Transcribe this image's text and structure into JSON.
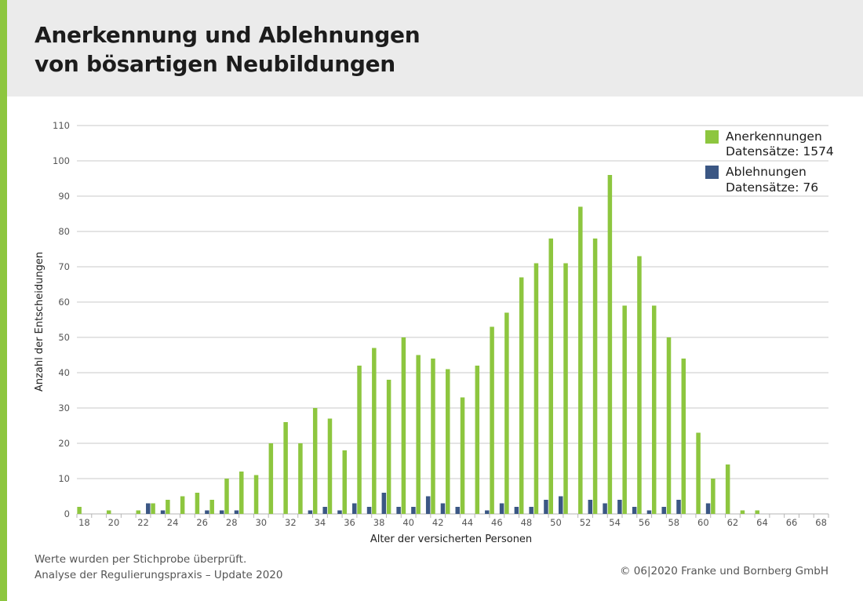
{
  "header": {
    "title_line1": "Anerkennung und Ablehnungen",
    "title_line2": "von bösartigen Neubildungen"
  },
  "footer": {
    "note_line1": "Werte wurden per Stichprobe überprüft.",
    "note_line2": "Analyse der Regulierungspraxis – Update 2020",
    "copyright": "© 06|2020 Franke und Bornberg GmbH"
  },
  "colors": {
    "accent": "#8dc63f",
    "anerkennungen": "#8dc63f",
    "ablehnungen": "#3b5784",
    "header_bg": "#ebebeb",
    "grid": "#c8c8c8"
  },
  "chart_data": {
    "type": "bar",
    "xlabel": "Alter der versicherten Personen",
    "ylabel": "Anzahl der Entscheidungen",
    "ylim": [
      0,
      110
    ],
    "yticks": [
      0,
      10,
      20,
      30,
      40,
      50,
      60,
      70,
      80,
      90,
      100,
      110
    ],
    "xticks": [
      18,
      20,
      22,
      24,
      26,
      28,
      30,
      32,
      34,
      36,
      38,
      40,
      42,
      44,
      46,
      48,
      50,
      52,
      54,
      56,
      58,
      60,
      62,
      64,
      66,
      68
    ],
    "grid": true,
    "legend_position": "top-right",
    "x": [
      18,
      19,
      20,
      21,
      22,
      23,
      24,
      25,
      26,
      27,
      28,
      29,
      30,
      31,
      32,
      33,
      34,
      35,
      36,
      37,
      38,
      39,
      40,
      41,
      42,
      43,
      44,
      45,
      46,
      47,
      48,
      49,
      50,
      51,
      52,
      53,
      54,
      55,
      56,
      57,
      58,
      59,
      60,
      61,
      62,
      63,
      64,
      65,
      66,
      67,
      68
    ],
    "series": [
      {
        "name": "Anerkennungen",
        "legend_line1": "Anerkennungen",
        "legend_line2": "Datensätze: 1574",
        "values": [
          2,
          0,
          1,
          0,
          1,
          3,
          4,
          5,
          6,
          4,
          10,
          12,
          11,
          20,
          26,
          20,
          30,
          27,
          18,
          42,
          47,
          38,
          50,
          45,
          44,
          41,
          33,
          42,
          53,
          57,
          67,
          71,
          78,
          71,
          87,
          78,
          96,
          59,
          73,
          59,
          50,
          44,
          23,
          10,
          14,
          1,
          1,
          0,
          0,
          0,
          0
        ]
      },
      {
        "name": "Ablehnungen",
        "legend_line1": "Ablehnungen",
        "legend_line2": "Datensätze: 76",
        "values": [
          0,
          0,
          0,
          0,
          3,
          1,
          0,
          0,
          1,
          1,
          1,
          0,
          0,
          0,
          0,
          1,
          2,
          1,
          3,
          2,
          6,
          2,
          2,
          5,
          3,
          2,
          0,
          1,
          3,
          2,
          2,
          4,
          5,
          0,
          4,
          3,
          4,
          2,
          1,
          2,
          4,
          0,
          3,
          0,
          0,
          0,
          0,
          0,
          0,
          0,
          0
        ]
      }
    ]
  }
}
